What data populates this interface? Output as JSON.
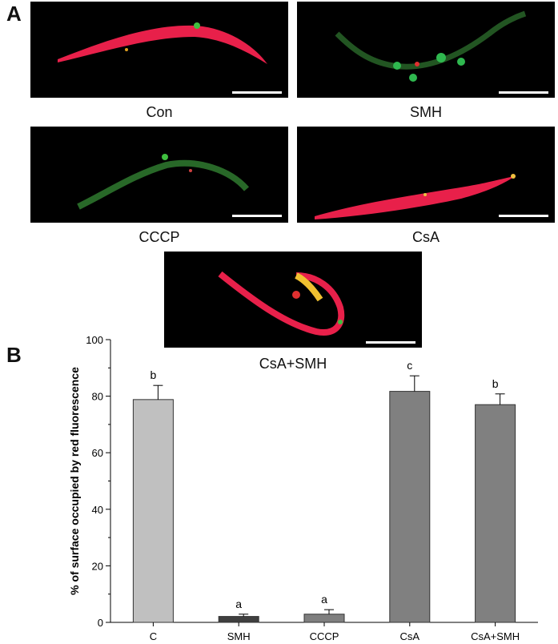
{
  "figure": {
    "panel_a_label": "A",
    "panel_b_label": "B"
  },
  "micrographs": [
    {
      "caption": "Con"
    },
    {
      "caption": "SMH"
    },
    {
      "caption": "CCCP"
    },
    {
      "caption": "CsA"
    },
    {
      "caption": "CsA+SMH"
    }
  ],
  "chart_data": {
    "type": "bar",
    "categories": [
      "C",
      "SMH",
      "CCCP",
      "CsA",
      "CsA+SMH"
    ],
    "values": [
      78.8,
      2.1,
      2.9,
      81.7,
      77.0
    ],
    "errors": [
      5.0,
      0.8,
      1.6,
      5.5,
      3.8
    ],
    "significance": [
      "b",
      "a",
      "a",
      "c",
      "b"
    ],
    "bar_colors": [
      "#c0c0c0",
      "#3f3f3f",
      "#7f7f7f",
      "#808080",
      "#808080"
    ],
    "ylabel": "% of surface occupied by red fluorescence",
    "xlabel": "",
    "ylim": [
      0,
      100
    ],
    "yticks": [
      0,
      20,
      40,
      60,
      80,
      100
    ],
    "grid": false
  }
}
